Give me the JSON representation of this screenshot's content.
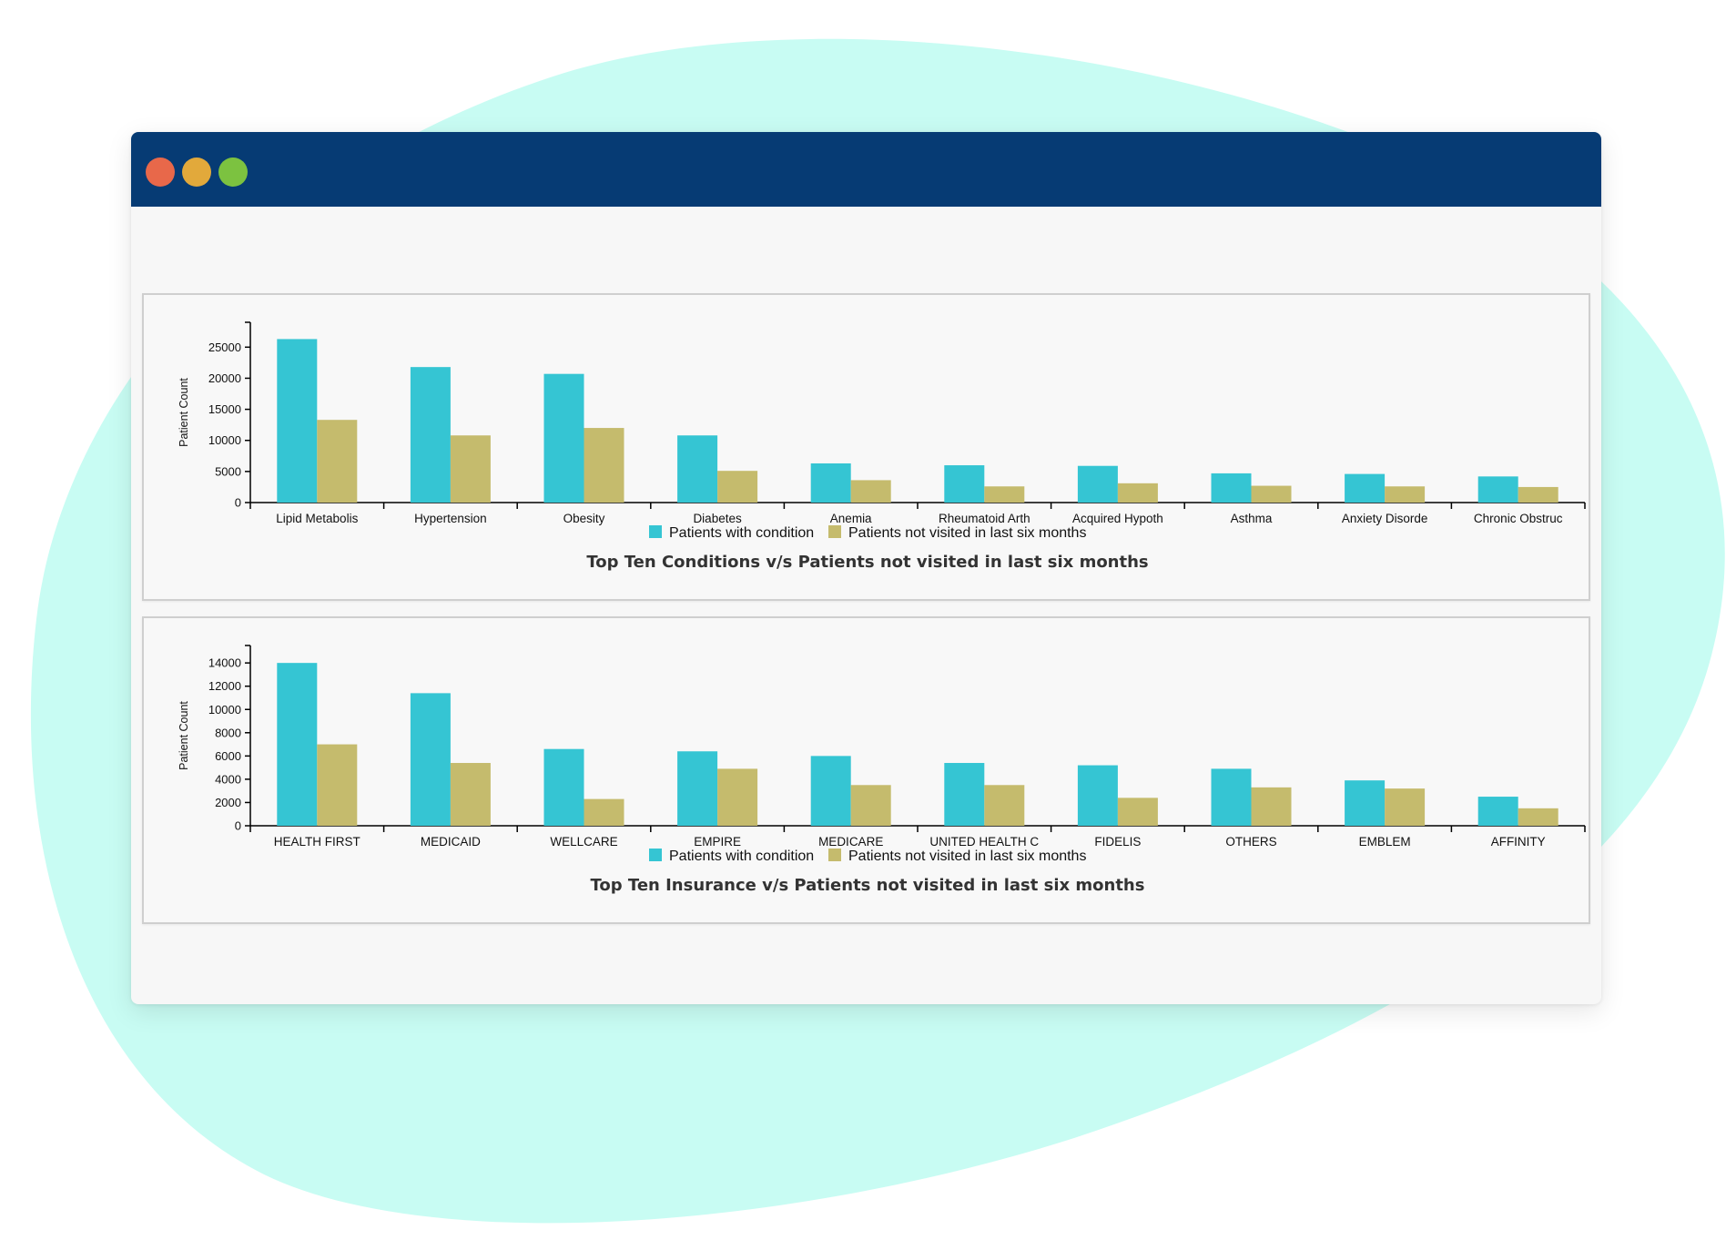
{
  "colors": {
    "background_blob": "#c8fcf3",
    "titlebar": "#063b74",
    "window_bg": "#f7f7f7",
    "dot_red": "#e8684a",
    "dot_yellow": "#e2a93b",
    "dot_green": "#7cc240"
  },
  "chart_data": [
    {
      "type": "bar",
      "title": "Top Ten Conditions v/s Patients not visited in last six months",
      "ylabel": "Patient Count",
      "xlabel": "",
      "ylim": [
        0,
        29000
      ],
      "yticks": [
        0,
        5000,
        10000,
        15000,
        20000,
        25000
      ],
      "grid": false,
      "legend": "bottom",
      "categories": [
        "Lipid Metabolis",
        "Hypertension",
        "Obesity",
        "Diabetes",
        "Anemia",
        "Rheumatoid Arth",
        "Acquired Hypoth",
        "Asthma",
        "Anxiety Disorde",
        "Chronic Obstruc"
      ],
      "series": [
        {
          "name": "Patients with condition",
          "color": "#35c5d3",
          "values": [
            26300,
            21800,
            20700,
            10800,
            6300,
            6000,
            5900,
            4700,
            4600,
            4200
          ]
        },
        {
          "name": "Patients not visited in last six months",
          "color": "#c5bb6d",
          "values": [
            13300,
            10800,
            12000,
            5100,
            3600,
            2600,
            3100,
            2700,
            2600,
            2500
          ]
        }
      ]
    },
    {
      "type": "bar",
      "title": "Top Ten Insurance v/s Patients not visited in last six months",
      "ylabel": "Patient Count",
      "xlabel": "",
      "ylim": [
        0,
        15500
      ],
      "yticks": [
        0,
        2000,
        4000,
        6000,
        8000,
        10000,
        12000,
        14000
      ],
      "grid": false,
      "legend": "bottom",
      "categories": [
        "HEALTH FIRST",
        "MEDICAID",
        "WELLCARE",
        "EMPIRE",
        "MEDICARE",
        "UNITED HEALTH C",
        "FIDELIS",
        "OTHERS",
        "EMBLEM",
        "AFFINITY"
      ],
      "series": [
        {
          "name": "Patients with condition",
          "color": "#35c5d3",
          "values": [
            14000,
            11400,
            6600,
            6400,
            6000,
            5400,
            5200,
            4900,
            3900,
            2500
          ]
        },
        {
          "name": "Patients not visited in last six months",
          "color": "#c5bb6d",
          "values": [
            7000,
            5400,
            2300,
            4900,
            3500,
            3500,
            2400,
            3300,
            3200,
            1500
          ]
        }
      ]
    }
  ]
}
